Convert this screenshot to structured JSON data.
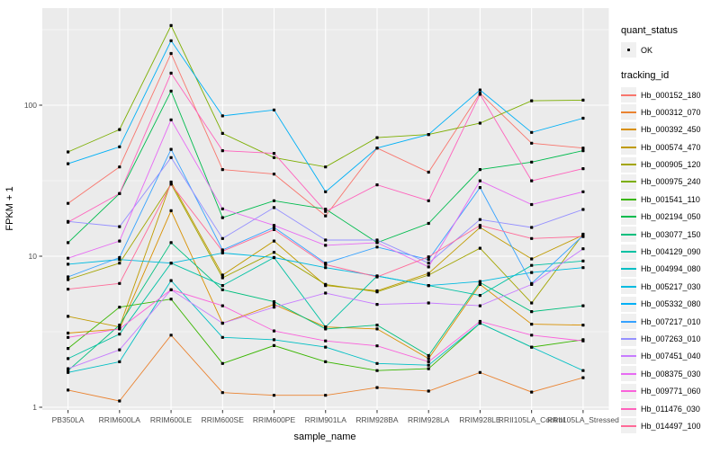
{
  "axes": {
    "x": {
      "title": "sample_name"
    },
    "y": {
      "title": "FPKM + 1",
      "ticks": [
        1,
        10,
        100
      ],
      "scale": "log10"
    }
  },
  "legend": {
    "quant_status": {
      "title": "quant_status",
      "ok_label": "OK"
    },
    "tracking": {
      "title": "tracking_id"
    }
  },
  "style": {
    "panel_bg": "#EBEBEB",
    "grid_color": "#FFFFFF",
    "point_color": "#000000",
    "tick_text_color": "#4D4D4D"
  },
  "chart_data": {
    "type": "line",
    "title": "",
    "xlabel": "sample_name",
    "ylabel": "FPKM + 1",
    "y_scale": "log10",
    "ylim": [
      1,
      440
    ],
    "yticks": [
      1,
      10,
      100
    ],
    "grid": true,
    "legend_position": "right",
    "point_shape": "filled-square-black (quant_status = OK)",
    "categories": [
      "PB350LA",
      "RRIM600LA",
      "RRIM600LE",
      "RRIM600SE",
      "RRIM600PE",
      "RRIM901LA",
      "RRIM928BA",
      "RRIM928LA",
      "RRIM928LE",
      "RRII105LA_Control",
      "RRII105LA_Stressed"
    ],
    "series": [
      {
        "name": "Hb_000152_180",
        "color": "#F8766D",
        "values": [
          22.4,
          39,
          220,
          37.5,
          35,
          18.5,
          52,
          36,
          120,
          56,
          52
        ]
      },
      {
        "name": "Hb_000312_070",
        "color": "#EA8331",
        "values": [
          1.3,
          1.1,
          3.0,
          1.25,
          1.2,
          1.2,
          1.35,
          1.28,
          1.7,
          1.26,
          1.57
        ]
      },
      {
        "name": "Hb_000392_450",
        "color": "#D89000",
        "values": [
          3.1,
          3.3,
          20,
          3.6,
          4.8,
          3.4,
          3.3,
          2.1,
          6.5,
          3.55,
          3.5
        ]
      },
      {
        "name": "Hb_000574_470",
        "color": "#C09B00",
        "values": [
          4.0,
          3.4,
          31,
          7.5,
          12.6,
          6.4,
          5.9,
          7.7,
          15.5,
          9.6,
          13.8
        ]
      },
      {
        "name": "Hb_000905_120",
        "color": "#A3A500",
        "values": [
          7.0,
          9.0,
          30,
          7.2,
          10.6,
          6.5,
          5.8,
          7.5,
          11.3,
          4.9,
          14
        ]
      },
      {
        "name": "Hb_000975_240",
        "color": "#7CAE00",
        "values": [
          49,
          69,
          337,
          65,
          45,
          39,
          61,
          64,
          76,
          107,
          108
        ]
      },
      {
        "name": "Hb_001541_110",
        "color": "#39B600",
        "values": [
          2.45,
          4.6,
          5.2,
          1.95,
          2.56,
          2.0,
          1.75,
          1.8,
          3.6,
          2.5,
          2.8
        ]
      },
      {
        "name": "Hb_002194_050",
        "color": "#00BB4E",
        "values": [
          12.3,
          26,
          124,
          18,
          23.3,
          20.5,
          12.3,
          16.5,
          37.5,
          42,
          50
        ]
      },
      {
        "name": "Hb_003077_150",
        "color": "#00BF7D",
        "values": [
          1.75,
          3.5,
          12.3,
          6.0,
          5.0,
          3.3,
          3.5,
          2.2,
          6.7,
          4.3,
          4.7
        ]
      },
      {
        "name": "Hb_004129_090",
        "color": "#00C1A3",
        "values": [
          2.1,
          3.05,
          9.0,
          6.4,
          9.8,
          3.4,
          7.4,
          6.4,
          5.5,
          8.7,
          9.3
        ]
      },
      {
        "name": "Hb_004994_080",
        "color": "#00BFC4",
        "values": [
          1.7,
          2.0,
          6.9,
          2.9,
          2.8,
          2.5,
          1.95,
          1.9,
          3.6,
          2.5,
          1.75
        ]
      },
      {
        "name": "Hb_005217_030",
        "color": "#00BAE0",
        "values": [
          8.85,
          9.5,
          9.0,
          10.5,
          9.8,
          8.4,
          7.4,
          6.4,
          6.8,
          7.8,
          8.4
        ]
      },
      {
        "name": "Hb_005332_080",
        "color": "#00B0F6",
        "values": [
          41,
          53,
          267,
          85,
          93,
          26.7,
          52,
          64,
          126,
          66,
          82
        ]
      },
      {
        "name": "Hb_007217_010",
        "color": "#35A2FF",
        "values": [
          7.3,
          9.8,
          51,
          11,
          15.5,
          9.0,
          11.5,
          9.5,
          28.5,
          6.6,
          13.7
        ]
      },
      {
        "name": "Hb_007263_010",
        "color": "#9590FF",
        "values": [
          17,
          15.7,
          45,
          13.1,
          21,
          12.8,
          12.8,
          9.0,
          17.5,
          15.5,
          20.4
        ]
      },
      {
        "name": "Hb_007451_040",
        "color": "#C77CFF",
        "values": [
          1.8,
          2.4,
          6.0,
          3.6,
          4.6,
          5.7,
          4.8,
          4.9,
          4.7,
          6.5,
          11.2
        ]
      },
      {
        "name": "Hb_008375_030",
        "color": "#E76BF3",
        "values": [
          9.7,
          12.6,
          80,
          20.6,
          16,
          11.8,
          12.3,
          8.5,
          31.6,
          22,
          26.7
        ]
      },
      {
        "name": "Hb_009771_060",
        "color": "#FA62DB",
        "values": [
          2.9,
          3.3,
          6.0,
          4.7,
          3.2,
          2.75,
          2.55,
          2.0,
          3.7,
          3.0,
          2.75
        ]
      },
      {
        "name": "Hb_011476_030",
        "color": "#FF62BC",
        "values": [
          16.8,
          26,
          163,
          50,
          48,
          19.8,
          29.7,
          23.3,
          118,
          31.6,
          38
        ]
      },
      {
        "name": "Hb_014497_100",
        "color": "#FF6A98",
        "values": [
          6.05,
          6.6,
          30,
          10.8,
          15,
          8.8,
          7.3,
          9.9,
          16,
          13.1,
          13.5
        ]
      }
    ]
  }
}
